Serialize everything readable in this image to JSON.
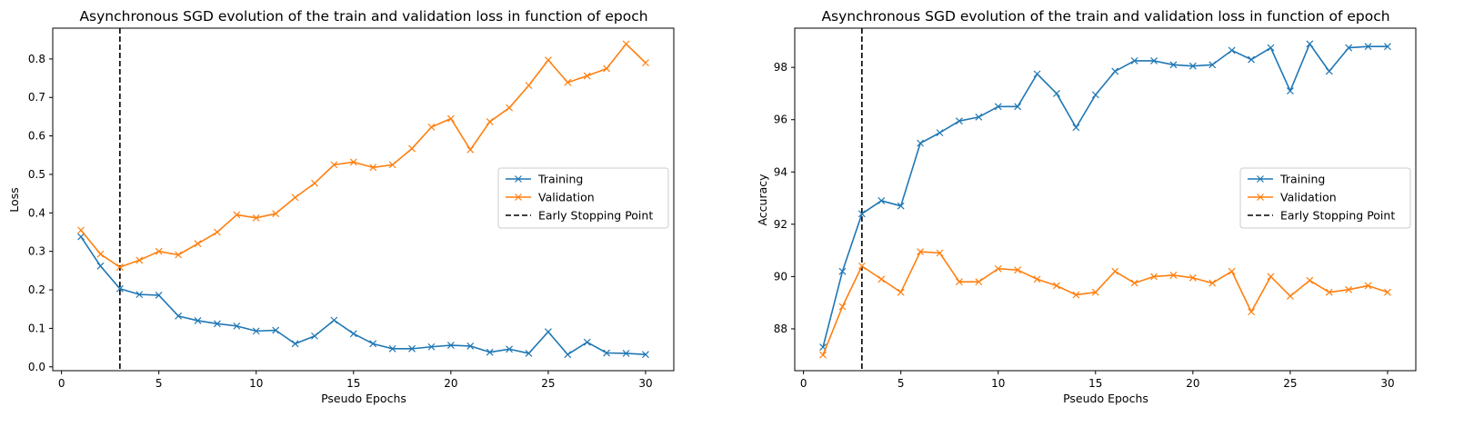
{
  "chart_data": [
    {
      "type": "line",
      "title": "Asynchronous SGD evolution of the train and validation loss in function of epoch",
      "xlabel": "Pseudo Epochs",
      "ylabel": "Loss",
      "xlim": [
        -0.45,
        31.45
      ],
      "ylim": [
        -0.01,
        0.88
      ],
      "xticks": [
        0,
        5,
        10,
        15,
        20,
        25,
        30
      ],
      "yticks": [
        0.0,
        0.1,
        0.2,
        0.3,
        0.4,
        0.5,
        0.6,
        0.7,
        0.8
      ],
      "ytick_labels": [
        "0.0",
        "0.1",
        "0.2",
        "0.3",
        "0.4",
        "0.5",
        "0.6",
        "0.7",
        "0.8"
      ],
      "x": [
        1,
        2,
        3,
        4,
        5,
        6,
        7,
        8,
        9,
        10,
        11,
        12,
        13,
        14,
        15,
        16,
        17,
        18,
        19,
        20,
        21,
        22,
        23,
        24,
        25,
        26,
        27,
        28,
        29,
        30
      ],
      "series": [
        {
          "name": "Training",
          "color": "#1f77b4",
          "marker": "x",
          "values": [
            0.338,
            0.262,
            0.203,
            0.188,
            0.186,
            0.132,
            0.12,
            0.112,
            0.106,
            0.093,
            0.095,
            0.06,
            0.08,
            0.121,
            0.086,
            0.06,
            0.047,
            0.047,
            0.052,
            0.056,
            0.054,
            0.038,
            0.046,
            0.035,
            0.091,
            0.032,
            0.064,
            0.036,
            0.035,
            0.032
          ]
        },
        {
          "name": "Validation",
          "color": "#ff7f0e",
          "marker": "x",
          "values": [
            0.355,
            0.293,
            0.259,
            0.277,
            0.3,
            0.291,
            0.32,
            0.35,
            0.395,
            0.387,
            0.398,
            0.44,
            0.477,
            0.525,
            0.532,
            0.518,
            0.525,
            0.567,
            0.623,
            0.645,
            0.564,
            0.637,
            0.673,
            0.731,
            0.797,
            0.739,
            0.756,
            0.775,
            0.839,
            0.79
          ]
        }
      ],
      "vline": {
        "x": 3,
        "name": "Early Stopping Point",
        "color": "#000000",
        "style": "dashed"
      },
      "legend": "center-right",
      "grid": false
    },
    {
      "type": "line",
      "title": "Asynchronous SGD evolution of the train and validation loss in function of epoch",
      "xlabel": "Pseudo Epochs",
      "ylabel": "Accuracy",
      "xlim": [
        -0.45,
        31.45
      ],
      "ylim": [
        86.4,
        99.5
      ],
      "xticks": [
        0,
        5,
        10,
        15,
        20,
        25,
        30
      ],
      "yticks": [
        88,
        90,
        92,
        94,
        96,
        98
      ],
      "ytick_labels": [
        "88",
        "90",
        "92",
        "94",
        "96",
        "98"
      ],
      "x": [
        1,
        2,
        3,
        4,
        5,
        6,
        7,
        8,
        9,
        10,
        11,
        12,
        13,
        14,
        15,
        16,
        17,
        18,
        19,
        20,
        21,
        22,
        23,
        24,
        25,
        26,
        27,
        28,
        29,
        30
      ],
      "series": [
        {
          "name": "Training",
          "color": "#1f77b4",
          "marker": "x",
          "values": [
            87.3,
            90.2,
            92.4,
            92.9,
            92.7,
            95.1,
            95.5,
            95.95,
            96.1,
            96.5,
            96.5,
            97.75,
            97.0,
            95.7,
            96.95,
            97.85,
            98.25,
            98.25,
            98.1,
            98.05,
            98.1,
            98.65,
            98.3,
            98.75,
            97.1,
            98.9,
            97.85,
            98.75,
            98.8,
            98.8
          ]
        },
        {
          "name": "Validation",
          "color": "#ff7f0e",
          "marker": "x",
          "values": [
            87.0,
            88.85,
            90.4,
            89.9,
            89.4,
            90.95,
            90.9,
            89.8,
            89.8,
            90.3,
            90.25,
            89.9,
            89.65,
            89.3,
            89.4,
            90.2,
            89.75,
            90.0,
            90.05,
            89.95,
            89.75,
            90.2,
            88.65,
            90.0,
            89.25,
            89.85,
            89.4,
            89.5,
            89.65,
            89.4
          ]
        }
      ],
      "vline": {
        "x": 3,
        "name": "Early Stopping Point",
        "color": "#000000",
        "style": "dashed"
      },
      "legend": "center-right",
      "grid": false
    }
  ]
}
